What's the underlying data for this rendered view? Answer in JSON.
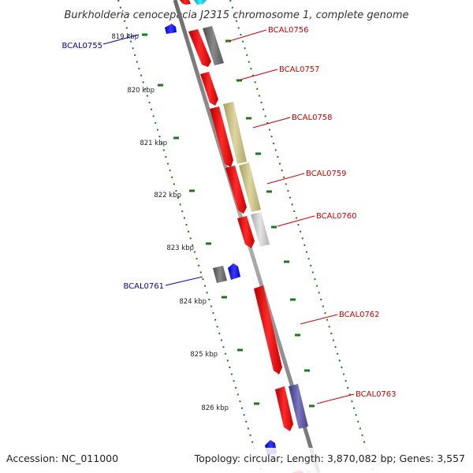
{
  "title": "Burkholderia cenocepacia J2315 chromosome 1, complete genome",
  "footer": {
    "accession": "Accession: NC_011000",
    "summary": "Topology: circular; Length: 3,870,082 bp; Genes: 3,557"
  },
  "ruler_labels": [
    "819 kbp",
    "820 kbp",
    "821 kbp",
    "822 kbp",
    "823 kbp",
    "824 kbp",
    "825 kbp",
    "826 kbp"
  ],
  "genes": [
    {
      "name": "BCAL0755",
      "strand": "minus",
      "color": "#0000aa"
    },
    {
      "name": "BCAL0756",
      "strand": "plus",
      "color": "#cc0000"
    },
    {
      "name": "BCAL0757",
      "strand": "plus",
      "color": "#cc0000"
    },
    {
      "name": "BCAL0758",
      "strand": "plus",
      "color": "#cc0000"
    },
    {
      "name": "BCAL0759",
      "strand": "plus",
      "color": "#cc0000"
    },
    {
      "name": "BCAL0760",
      "strand": "plus",
      "color": "#cc0000"
    },
    {
      "name": "BCAL0761",
      "strand": "minus",
      "color": "#0000aa"
    },
    {
      "name": "BCAL0762",
      "strand": "plus",
      "color": "#cc0000"
    },
    {
      "name": "BCAL0763",
      "strand": "plus",
      "color": "#cc0000"
    }
  ],
  "colors": {
    "backbone": "#888888",
    "ruler": "#1a7a1a",
    "plus_cds": "#ff0000",
    "minus_cds": "#0000ff",
    "gray_feature": "#666666",
    "olive_feature": "#c8c080",
    "light_gray_feature": "#c8c8c8",
    "purple_feature": "#55509a",
    "cyan_feature": "#00c8dc"
  }
}
